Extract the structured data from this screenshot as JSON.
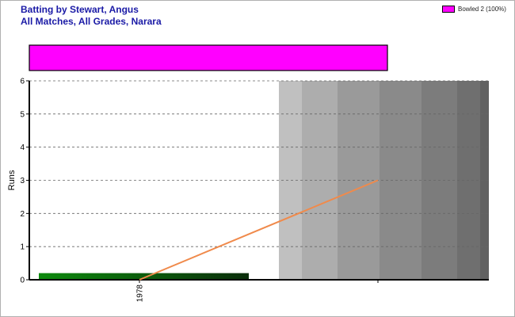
{
  "header": {
    "title_line1": "Batting by Stewart, Angus",
    "title_line2": "All Matches, All Grades, Narara"
  },
  "chart_data": {
    "type": "bar",
    "ylabel": "Runs",
    "ylim": [
      0,
      6
    ],
    "yticks": [
      "0",
      "1",
      "2",
      "3",
      "4",
      "5",
      "6"
    ],
    "grid": true,
    "legend_position": "top-right",
    "categories": [
      "1978"
    ],
    "series": [
      {
        "name": "Bowled 2 (100%)",
        "color": "#ff00ff",
        "values": [
          2
        ]
      }
    ],
    "innings_runs": [
      0.2
    ],
    "average_line": {
      "x": [
        0,
        1
      ],
      "y": [
        0,
        3
      ],
      "color": "#f08a4b"
    },
    "summary_bar_color": "#ff00ff",
    "innings_bar_color": "#0d7d0d",
    "shaded_region_colors": [
      "#c0c0c0",
      "#adadad",
      "#9a9a9a",
      "#8a8a8a",
      "#7c7c7c",
      "#6f6f6f",
      "#616161"
    ]
  }
}
